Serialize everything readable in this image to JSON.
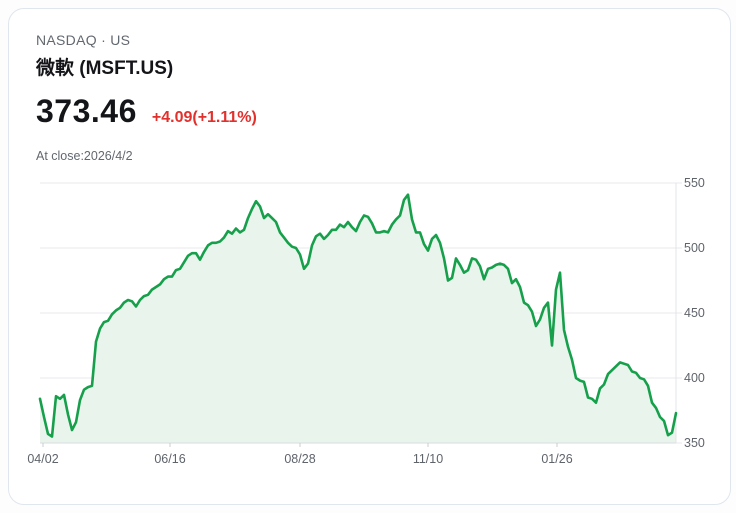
{
  "header": {
    "exchange": "NASDAQ · US",
    "name": "微軟 (MSFT.US)",
    "price": "373.46",
    "change": "+4.09(+1.11%)",
    "at_close": "At close:2026/4/2"
  },
  "colors": {
    "line": "#17a04b",
    "area_fill": "#e9f4ec",
    "red": "#e2302c",
    "text_primary": "#141519",
    "text_secondary": "#62686f",
    "axis_label": "#5f646b",
    "gridline": "#e9eaec",
    "axis_line": "#d9dbde",
    "tick_mark": "#c9ccd1",
    "card_border": "#dfe6ee",
    "card_bg": "#ffffff",
    "page_bg": "#fdfdfe"
  },
  "chart_data": {
    "type": "area",
    "series_name": "MSFT.US close price",
    "x_tick_labels": [
      "04/02",
      "06/16",
      "08/28",
      "11/10",
      "01/26"
    ],
    "y_tick_labels": [
      "350",
      "400",
      "450",
      "500",
      "550"
    ],
    "y_ticks": [
      350,
      400,
      450,
      500,
      550
    ],
    "ylim": [
      350,
      550
    ],
    "grid": "horizontal-only",
    "legend": "none",
    "last_close": 373.46,
    "values": [
      384,
      370,
      357,
      355,
      386,
      384,
      387,
      372,
      360,
      366,
      383,
      391,
      393,
      394,
      428,
      438,
      443,
      444,
      449,
      452,
      454,
      458,
      460,
      459,
      455,
      460,
      463,
      464,
      468,
      470,
      472,
      476,
      478,
      478,
      483,
      484,
      489,
      494,
      496,
      496,
      491,
      497,
      502,
      504,
      504,
      505,
      508,
      513,
      511,
      515,
      512,
      514,
      523,
      530,
      536,
      532,
      523,
      526,
      523,
      520,
      512,
      508,
      504,
      501,
      500,
      495,
      484,
      488,
      502,
      509,
      511,
      507,
      510,
      514,
      514,
      518,
      516,
      520,
      516,
      513,
      520,
      525,
      524,
      519,
      512,
      512,
      513,
      512,
      518,
      522,
      525,
      537,
      541,
      522,
      512,
      512,
      503,
      498,
      507,
      510,
      504,
      492,
      475,
      477,
      492,
      487,
      481,
      483,
      492,
      491,
      486,
      476,
      484,
      485,
      487,
      488,
      487,
      484,
      473,
      476,
      470,
      458,
      456,
      451,
      440,
      445,
      454,
      458,
      425,
      468,
      481,
      437,
      424,
      414,
      400,
      398,
      397,
      385,
      384,
      381,
      392,
      395,
      403,
      406,
      409,
      412,
      411,
      410,
      405,
      404,
      400,
      399,
      394,
      381,
      377,
      370,
      367,
      356,
      358,
      373
    ]
  }
}
